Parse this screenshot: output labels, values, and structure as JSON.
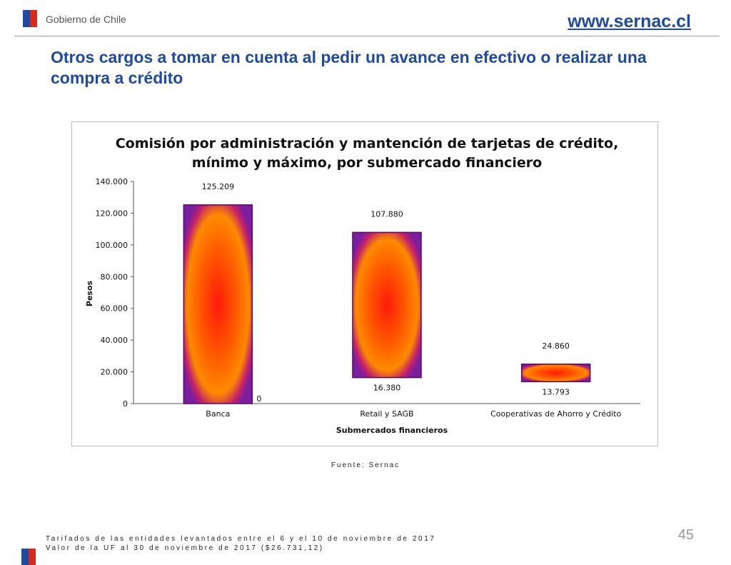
{
  "header": {
    "gov_label": "Gobierno de Chile",
    "site_link": "www.sernac.cl",
    "title": "Otros cargos a tomar en cuenta al pedir un avance en efectivo o realizar una compra a crédito"
  },
  "chart_data": {
    "type": "bar",
    "title_line1": "Comisión por administración y mantención de tarjetas de crédito,",
    "title_line2": "mínimo y máximo, por submercado financiero",
    "xlabel": "Submercados financieros",
    "ylabel": "Pesos",
    "ylim": [
      0,
      140000
    ],
    "yticks": [
      0,
      20000,
      40000,
      60000,
      80000,
      100000,
      120000,
      140000
    ],
    "ytick_labels": [
      "0",
      "20.000",
      "40.000",
      "60.000",
      "80.000",
      "100.000",
      "120.000",
      "140.000"
    ],
    "categories": [
      "Banca",
      "Retail y SAGB",
      "Cooperativas de Ahorro y Crédito"
    ],
    "series": [
      {
        "values": [
          0,
          16380,
          13793
        ],
        "labels": [
          "0",
          "16.380",
          "13.793"
        ]
      },
      {
        "values": [
          125209,
          107880,
          24860
        ],
        "labels": [
          "125.209",
          "107.880",
          "24.860"
        ]
      }
    ],
    "colors": {
      "center": "#ff1a0a",
      "mid": "#ff7a00",
      "edge": "#ff9a00",
      "border": "#5a0a5a",
      "outer": "#7a1fa0"
    }
  },
  "source": "Fuente: Sernac",
  "page_number": "45",
  "footnotes": [
    "Tarifados de las entidades levantados entre el 6 y el 10 de noviembre de 2017",
    "Valor de la UF al 30 de noviembre de 2017 ($26.731,12)"
  ]
}
